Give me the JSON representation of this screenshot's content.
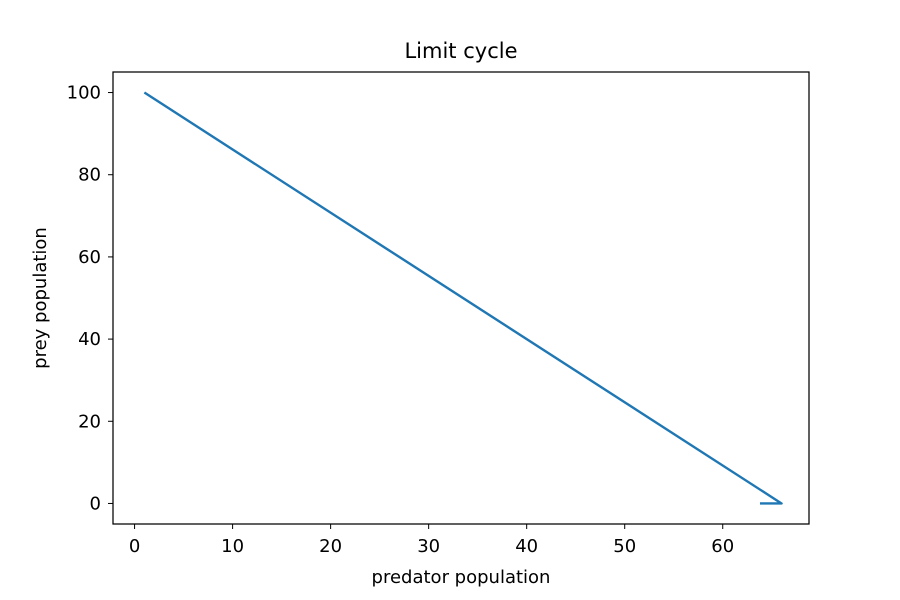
{
  "chart_data": {
    "type": "line",
    "title": "Limit cycle",
    "xlabel": "predator population",
    "ylabel": "prey population",
    "xlim": [
      -2.2,
      68.8
    ],
    "ylim": [
      -5,
      105
    ],
    "xticks": [
      0,
      10,
      20,
      30,
      40,
      50,
      60
    ],
    "yticks": [
      0,
      20,
      40,
      60,
      80,
      100
    ],
    "grid": false,
    "series": [
      {
        "color": "#1f77b4",
        "x": [
          1,
          66,
          63.8
        ],
        "y": [
          100,
          0,
          0
        ]
      }
    ]
  }
}
